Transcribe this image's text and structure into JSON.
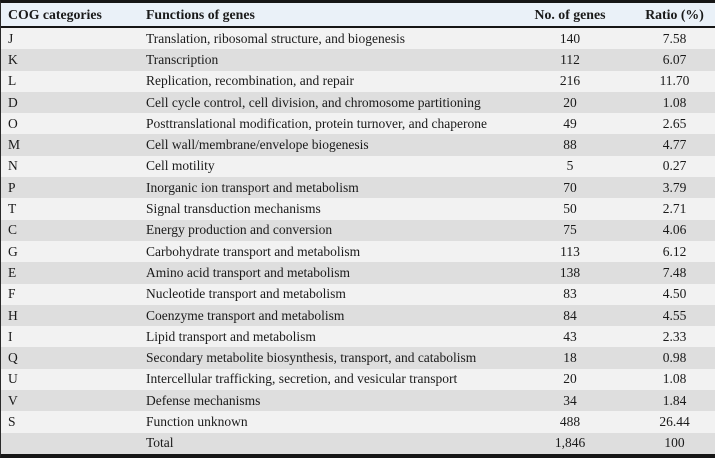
{
  "table": {
    "columns": {
      "category": "COG categories",
      "function": "Functions of genes",
      "count": "No. of genes",
      "ratio": "Ratio (%)"
    },
    "rows": [
      {
        "category": "J",
        "function": "Translation, ribosomal structure, and biogenesis",
        "count": "140",
        "ratio": "7.58"
      },
      {
        "category": "K",
        "function": "Transcription",
        "count": "112",
        "ratio": "6.07"
      },
      {
        "category": "L",
        "function": "Replication, recombination, and repair",
        "count": "216",
        "ratio": "11.70"
      },
      {
        "category": "D",
        "function": "Cell cycle control, cell division, and chromosome partitioning",
        "count": "20",
        "ratio": "1.08"
      },
      {
        "category": "O",
        "function": "Posttranslational modification, protein turnover, and chaperone",
        "count": "49",
        "ratio": "2.65"
      },
      {
        "category": "M",
        "function": "Cell wall/membrane/envelope biogenesis",
        "count": "88",
        "ratio": "4.77"
      },
      {
        "category": "N",
        "function": "Cell motility",
        "count": "5",
        "ratio": "0.27"
      },
      {
        "category": "P",
        "function": "Inorganic ion transport and metabolism",
        "count": "70",
        "ratio": "3.79"
      },
      {
        "category": "T",
        "function": "Signal transduction mechanisms",
        "count": "50",
        "ratio": "2.71"
      },
      {
        "category": "C",
        "function": "Energy production and conversion",
        "count": "75",
        "ratio": "4.06"
      },
      {
        "category": "G",
        "function": "Carbohydrate transport and metabolism",
        "count": "113",
        "ratio": "6.12"
      },
      {
        "category": "E",
        "function": "Amino acid transport and metabolism",
        "count": "138",
        "ratio": "7.48"
      },
      {
        "category": "F",
        "function": "Nucleotide transport and metabolism",
        "count": "83",
        "ratio": "4.50"
      },
      {
        "category": "H",
        "function": "Coenzyme transport and metabolism",
        "count": "84",
        "ratio": "4.55"
      },
      {
        "category": "I",
        "function": "Lipid transport and metabolism",
        "count": "43",
        "ratio": "2.33"
      },
      {
        "category": "Q",
        "function": "Secondary metabolite biosynthesis, transport, and catabolism",
        "count": "18",
        "ratio": "0.98"
      },
      {
        "category": "U",
        "function": "Intercellular trafficking, secretion, and vesicular transport",
        "count": "20",
        "ratio": "1.08"
      },
      {
        "category": "V",
        "function": "Defense mechanisms",
        "count": "34",
        "ratio": "1.84"
      },
      {
        "category": "S",
        "function": "Function unknown",
        "count": "488",
        "ratio": "26.44"
      },
      {
        "category": "",
        "function": "Total",
        "count": "1,846",
        "ratio": "100"
      }
    ]
  },
  "colors": {
    "header_bg": "#eaf1f8",
    "row_light_bg": "#f2f2f2",
    "row_dark_bg": "#dedede",
    "border": "#161616",
    "text": "#1a1a1a"
  }
}
